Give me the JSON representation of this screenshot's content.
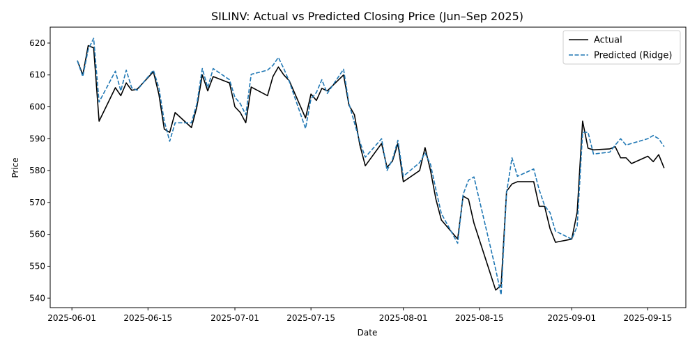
{
  "chart_data": {
    "type": "line",
    "title": "SILINV: Actual vs Predicted Closing Price (Jun–Sep 2025)",
    "xlabel": "Date",
    "ylabel": "Price",
    "xlim": [
      "2025-05-28",
      "2025-09-22"
    ],
    "ylim": [
      537,
      625
    ],
    "x_ticks": [
      "2025-06-01",
      "2025-06-15",
      "2025-07-01",
      "2025-07-15",
      "2025-08-01",
      "2025-08-15",
      "2025-09-01",
      "2025-09-15"
    ],
    "y_ticks": [
      540,
      550,
      560,
      570,
      580,
      590,
      600,
      610,
      620
    ],
    "grid": false,
    "legend_position": "top-right",
    "series": [
      {
        "name": "Actual",
        "color": "#000000",
        "style": "solid",
        "points": [
          [
            "2025-06-02",
            614.5
          ],
          [
            "2025-06-03",
            610.0
          ],
          [
            "2025-06-04",
            619.2
          ],
          [
            "2025-06-05",
            618.5
          ],
          [
            "2025-06-06",
            595.5
          ],
          [
            "2025-06-09",
            606.0
          ],
          [
            "2025-06-10",
            603.5
          ],
          [
            "2025-06-11",
            607.5
          ],
          [
            "2025-06-12",
            605.2
          ],
          [
            "2025-06-13",
            605.5
          ],
          [
            "2025-06-16",
            611.0
          ],
          [
            "2025-06-17",
            604.0
          ],
          [
            "2025-06-18",
            593.0
          ],
          [
            "2025-06-19",
            592.0
          ],
          [
            "2025-06-20",
            598.2
          ],
          [
            "2025-06-23",
            593.5
          ],
          [
            "2025-06-24",
            600.0
          ],
          [
            "2025-06-25",
            610.0
          ],
          [
            "2025-06-26",
            605.0
          ],
          [
            "2025-06-27",
            609.5
          ],
          [
            "2025-06-30",
            607.5
          ],
          [
            "2025-07-01",
            600.0
          ],
          [
            "2025-07-02",
            598.2
          ],
          [
            "2025-07-03",
            595.0
          ],
          [
            "2025-07-04",
            606.2
          ],
          [
            "2025-07-07",
            603.5
          ],
          [
            "2025-07-08",
            609.5
          ],
          [
            "2025-07-09",
            612.5
          ],
          [
            "2025-07-10",
            610.0
          ],
          [
            "2025-07-11",
            608.2
          ],
          [
            "2025-07-14",
            596.5
          ],
          [
            "2025-07-15",
            604.0
          ],
          [
            "2025-07-16",
            602.0
          ],
          [
            "2025-07-17",
            605.8
          ],
          [
            "2025-07-18",
            605.0
          ],
          [
            "2025-07-21",
            610.0
          ],
          [
            "2025-07-22",
            600.5
          ],
          [
            "2025-07-23",
            597.5
          ],
          [
            "2025-07-24",
            588.0
          ],
          [
            "2025-07-25",
            581.5
          ],
          [
            "2025-07-28",
            588.5
          ],
          [
            "2025-07-29",
            581.0
          ],
          [
            "2025-07-30",
            583.0
          ],
          [
            "2025-07-31",
            588.5
          ],
          [
            "2025-08-01",
            576.5
          ],
          [
            "2025-08-04",
            580.0
          ],
          [
            "2025-08-05",
            587.2
          ],
          [
            "2025-08-06",
            580.0
          ],
          [
            "2025-08-07",
            571.0
          ],
          [
            "2025-08-08",
            564.5
          ],
          [
            "2025-08-11",
            558.5
          ],
          [
            "2025-08-12",
            572.0
          ],
          [
            "2025-08-13",
            571.0
          ],
          [
            "2025-08-14",
            563.5
          ],
          [
            "2025-08-18",
            542.5
          ],
          [
            "2025-08-19",
            544.0
          ],
          [
            "2025-08-20",
            573.5
          ],
          [
            "2025-08-21",
            575.8
          ],
          [
            "2025-08-22",
            576.5
          ],
          [
            "2025-08-25",
            576.5
          ],
          [
            "2025-08-26",
            568.8
          ],
          [
            "2025-08-27",
            568.8
          ],
          [
            "2025-08-28",
            561.8
          ],
          [
            "2025-08-29",
            557.5
          ],
          [
            "2025-09-01",
            558.5
          ],
          [
            "2025-09-02",
            567.0
          ],
          [
            "2025-09-03",
            595.5
          ],
          [
            "2025-09-04",
            587.0
          ],
          [
            "2025-09-05",
            586.5
          ],
          [
            "2025-09-08",
            586.8
          ],
          [
            "2025-09-09",
            587.5
          ],
          [
            "2025-09-10",
            584.0
          ],
          [
            "2025-09-11",
            584.0
          ],
          [
            "2025-09-12",
            582.2
          ],
          [
            "2025-09-15",
            584.5
          ],
          [
            "2025-09-16",
            582.8
          ],
          [
            "2025-09-17",
            585.0
          ],
          [
            "2025-09-18",
            580.8
          ]
        ]
      },
      {
        "name": "Predicted (Ridge)",
        "color": "#1f77b4",
        "style": "dashed",
        "points": [
          [
            "2025-06-02",
            614.5
          ],
          [
            "2025-06-03",
            609.5
          ],
          [
            "2025-06-04",
            618.0
          ],
          [
            "2025-06-05",
            621.5
          ],
          [
            "2025-06-06",
            601.5
          ],
          [
            "2025-06-09",
            611.2
          ],
          [
            "2025-06-10",
            605.0
          ],
          [
            "2025-06-11",
            611.5
          ],
          [
            "2025-06-12",
            606.0
          ],
          [
            "2025-06-13",
            605.2
          ],
          [
            "2025-06-16",
            611.5
          ],
          [
            "2025-06-17",
            606.0
          ],
          [
            "2025-06-18",
            595.5
          ],
          [
            "2025-06-19",
            589.2
          ],
          [
            "2025-06-20",
            595.0
          ],
          [
            "2025-06-23",
            595.0
          ],
          [
            "2025-06-24",
            601.0
          ],
          [
            "2025-06-25",
            612.0
          ],
          [
            "2025-06-26",
            606.0
          ],
          [
            "2025-06-27",
            612.0
          ],
          [
            "2025-06-30",
            608.5
          ],
          [
            "2025-07-01",
            603.0
          ],
          [
            "2025-07-02",
            601.0
          ],
          [
            "2025-07-03",
            597.5
          ],
          [
            "2025-07-04",
            610.2
          ],
          [
            "2025-07-07",
            611.5
          ],
          [
            "2025-07-08",
            613.0
          ],
          [
            "2025-07-09",
            615.5
          ],
          [
            "2025-07-10",
            612.0
          ],
          [
            "2025-07-11",
            608.0
          ],
          [
            "2025-07-14",
            593.2
          ],
          [
            "2025-07-15",
            602.5
          ],
          [
            "2025-07-16",
            604.5
          ],
          [
            "2025-07-17",
            608.5
          ],
          [
            "2025-07-18",
            604.2
          ],
          [
            "2025-07-21",
            611.8
          ],
          [
            "2025-07-22",
            601.0
          ],
          [
            "2025-07-23",
            595.0
          ],
          [
            "2025-07-24",
            589.0
          ],
          [
            "2025-07-25",
            584.2
          ],
          [
            "2025-07-28",
            590.0
          ],
          [
            "2025-07-29",
            580.0
          ],
          [
            "2025-07-30",
            583.5
          ],
          [
            "2025-07-31",
            589.5
          ],
          [
            "2025-08-01",
            578.2
          ],
          [
            "2025-08-04",
            582.5
          ],
          [
            "2025-08-05",
            585.5
          ],
          [
            "2025-08-06",
            582.0
          ],
          [
            "2025-08-07",
            574.0
          ],
          [
            "2025-08-08",
            566.5
          ],
          [
            "2025-08-11",
            557.2
          ],
          [
            "2025-08-12",
            572.5
          ],
          [
            "2025-08-13",
            577.0
          ],
          [
            "2025-08-14",
            578.0
          ],
          [
            "2025-08-18",
            549.0
          ],
          [
            "2025-08-19",
            541.0
          ],
          [
            "2025-08-20",
            573.0
          ],
          [
            "2025-08-21",
            584.0
          ],
          [
            "2025-08-22",
            578.2
          ],
          [
            "2025-08-25",
            580.5
          ],
          [
            "2025-08-26",
            574.0
          ],
          [
            "2025-08-27",
            569.0
          ],
          [
            "2025-08-28",
            566.8
          ],
          [
            "2025-08-29",
            561.0
          ],
          [
            "2025-09-01",
            558.5
          ],
          [
            "2025-09-02",
            562.5
          ],
          [
            "2025-09-03",
            592.0
          ],
          [
            "2025-09-04",
            592.0
          ],
          [
            "2025-09-05",
            585.2
          ],
          [
            "2025-09-08",
            585.8
          ],
          [
            "2025-09-09",
            588.0
          ],
          [
            "2025-09-10",
            590.0
          ],
          [
            "2025-09-11",
            588.0
          ],
          [
            "2025-09-12",
            588.5
          ],
          [
            "2025-09-15",
            590.0
          ],
          [
            "2025-09-16",
            591.0
          ],
          [
            "2025-09-17",
            590.0
          ],
          [
            "2025-09-18",
            587.5
          ]
        ]
      }
    ]
  }
}
